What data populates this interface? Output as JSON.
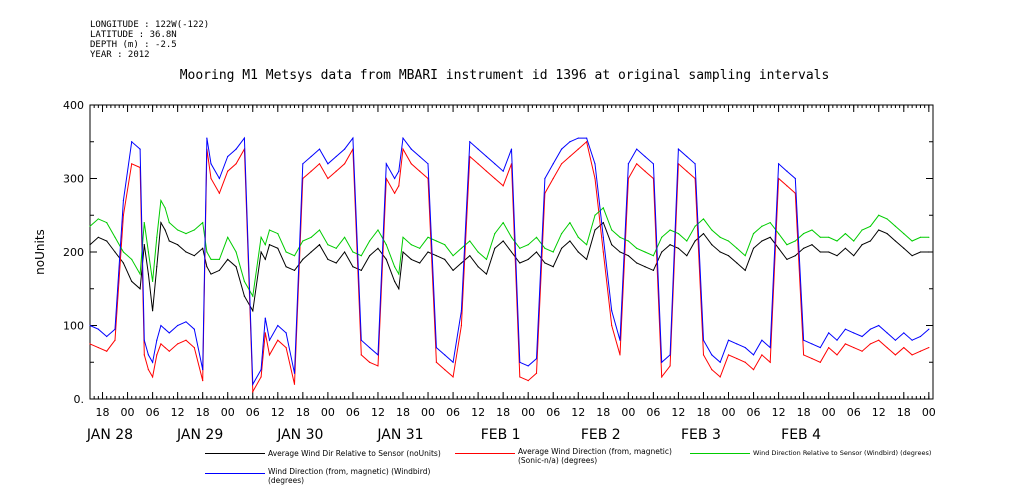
{
  "meta": {
    "longitude": "LONGITUDE : 122W(-122)",
    "latitude": "LATITUDE : 36.8N",
    "depth": "DEPTH (m) : -2.5",
    "year": "YEAR : 2012"
  },
  "chart_data": {
    "type": "line",
    "title": "Mooring M1 Metsys data from MBARI instrument id 1396 at original sampling intervals",
    "ylabel": "noUnits",
    "xlabel": "",
    "ylim": [
      0,
      400
    ],
    "xlim": [
      15,
      217
    ],
    "grid": false,
    "y_ticks": [
      "0.",
      "100",
      "200",
      "300",
      "400"
    ],
    "hour_ticks": [
      {
        "x": 18,
        "label": "18"
      },
      {
        "x": 24,
        "label": "00"
      },
      {
        "x": 30,
        "label": "06"
      },
      {
        "x": 36,
        "label": "12"
      },
      {
        "x": 42,
        "label": "18"
      },
      {
        "x": 48,
        "label": "00"
      },
      {
        "x": 54,
        "label": "06"
      },
      {
        "x": 60,
        "label": "12"
      },
      {
        "x": 66,
        "label": "18"
      },
      {
        "x": 72,
        "label": "00"
      },
      {
        "x": 78,
        "label": "06"
      },
      {
        "x": 84,
        "label": "12"
      },
      {
        "x": 90,
        "label": "18"
      },
      {
        "x": 96,
        "label": "00"
      },
      {
        "x": 102,
        "label": "06"
      },
      {
        "x": 108,
        "label": "12"
      },
      {
        "x": 114,
        "label": "18"
      },
      {
        "x": 120,
        "label": "00"
      },
      {
        "x": 126,
        "label": "06"
      },
      {
        "x": 132,
        "label": "12"
      },
      {
        "x": 138,
        "label": "18"
      },
      {
        "x": 144,
        "label": "00"
      },
      {
        "x": 150,
        "label": "06"
      },
      {
        "x": 156,
        "label": "12"
      },
      {
        "x": 162,
        "label": "18"
      },
      {
        "x": 168,
        "label": "00"
      },
      {
        "x": 174,
        "label": "06"
      },
      {
        "x": 180,
        "label": "12"
      },
      {
        "x": 186,
        "label": "18"
      },
      {
        "x": 192,
        "label": "00"
      },
      {
        "x": 198,
        "label": "06"
      },
      {
        "x": 204,
        "label": "12"
      },
      {
        "x": 210,
        "label": "18"
      },
      {
        "x": 216,
        "label": "00"
      }
    ],
    "date_labels": [
      {
        "x": 15,
        "label": "JAN 28"
      },
      {
        "x": 39,
        "label": "JAN 29"
      },
      {
        "x": 63,
        "label": "JAN 30"
      },
      {
        "x": 87,
        "label": "JAN 31"
      },
      {
        "x": 111,
        "label": "FEB  1"
      },
      {
        "x": 135,
        "label": "FEB  2"
      },
      {
        "x": 159,
        "label": "FEB  3"
      },
      {
        "x": 183,
        "label": "FEB  4"
      }
    ],
    "series": [
      {
        "name": "Average Wind Dir Relative to Sensor (noUnits)",
        "color": "#000000",
        "x": [
          15,
          17,
          19,
          21,
          23,
          25,
          27,
          28,
          29,
          30,
          31,
          32,
          33,
          34,
          36,
          38,
          40,
          42,
          43,
          44,
          46,
          48,
          50,
          52,
          54,
          56,
          57,
          58,
          60,
          62,
          64,
          66,
          68,
          70,
          72,
          74,
          76,
          78,
          80,
          82,
          84,
          86,
          88,
          89,
          90,
          92,
          94,
          96,
          98,
          100,
          102,
          104,
          106,
          108,
          110,
          112,
          114,
          116,
          118,
          120,
          122,
          124,
          126,
          128,
          130,
          132,
          134,
          136,
          138,
          140,
          142,
          144,
          146,
          148,
          150,
          152,
          154,
          156,
          158,
          160,
          162,
          164,
          166,
          168,
          170,
          172,
          174,
          176,
          178,
          180,
          182,
          184,
          186,
          188,
          190,
          192,
          194,
          196,
          198,
          200,
          202,
          204,
          206,
          208,
          210,
          212,
          214,
          216
        ],
        "y": [
          210,
          220,
          215,
          200,
          185,
          160,
          150,
          210,
          170,
          120,
          180,
          240,
          230,
          215,
          210,
          200,
          195,
          205,
          180,
          170,
          175,
          190,
          180,
          140,
          120,
          200,
          190,
          210,
          205,
          180,
          175,
          190,
          200,
          210,
          190,
          185,
          200,
          180,
          175,
          195,
          205,
          190,
          160,
          150,
          200,
          190,
          185,
          200,
          195,
          190,
          175,
          185,
          195,
          180,
          170,
          205,
          215,
          200,
          185,
          190,
          200,
          185,
          180,
          205,
          215,
          200,
          190,
          230,
          240,
          210,
          200,
          195,
          185,
          180,
          175,
          200,
          210,
          205,
          195,
          215,
          225,
          210,
          200,
          195,
          185,
          175,
          205,
          215,
          220,
          205,
          190,
          195,
          205,
          210,
          200,
          200,
          195,
          205,
          195,
          210,
          215,
          230,
          225,
          215,
          205,
          195,
          200,
          200
        ]
      },
      {
        "name": "Average Wind Direction (from, magnetic) (Sonic-n/a) (degrees)",
        "color": "#ff0000",
        "x": [
          15,
          17,
          19,
          21,
          23,
          25,
          27,
          28,
          29,
          30,
          31,
          32,
          33,
          34,
          36,
          38,
          40,
          42,
          43,
          44,
          46,
          48,
          50,
          52,
          54,
          56,
          57,
          58,
          60,
          62,
          64,
          66,
          68,
          70,
          72,
          74,
          76,
          78,
          80,
          82,
          84,
          86,
          88,
          89,
          90,
          92,
          94,
          96,
          98,
          100,
          102,
          104,
          106,
          108,
          110,
          112,
          114,
          116,
          118,
          120,
          122,
          124,
          126,
          128,
          130,
          132,
          134,
          136,
          138,
          140,
          142,
          144,
          146,
          148,
          150,
          152,
          154,
          156,
          158,
          160,
          162,
          164,
          166,
          168,
          170,
          172,
          174,
          176,
          178,
          180,
          182,
          184,
          186,
          188,
          190,
          192,
          194,
          196,
          198,
          200,
          202,
          204,
          206,
          208,
          210,
          212,
          214,
          216
        ],
        "y": [
          75,
          70,
          65,
          80,
          250,
          320,
          315,
          60,
          40,
          30,
          60,
          75,
          70,
          65,
          75,
          80,
          70,
          25,
          340,
          300,
          280,
          310,
          320,
          340,
          10,
          30,
          90,
          60,
          80,
          70,
          20,
          300,
          310,
          320,
          300,
          310,
          320,
          340,
          60,
          50,
          45,
          300,
          280,
          290,
          340,
          320,
          310,
          300,
          50,
          40,
          30,
          100,
          330,
          320,
          310,
          300,
          290,
          320,
          30,
          25,
          35,
          280,
          300,
          320,
          330,
          340,
          350,
          300,
          200,
          100,
          60,
          300,
          320,
          310,
          300,
          30,
          45,
          320,
          310,
          300,
          60,
          40,
          30,
          60,
          55,
          50,
          40,
          60,
          50,
          300,
          290,
          280,
          60,
          55,
          50,
          70,
          60,
          75,
          70,
          65,
          75,
          80,
          70,
          60,
          70,
          60,
          65,
          70
        ]
      },
      {
        "name": "Wind Direction Relative to Sensor (Windbird) (degrees)",
        "color": "#00cc00",
        "x": [
          15,
          17,
          19,
          21,
          23,
          25,
          27,
          28,
          29,
          30,
          31,
          32,
          33,
          34,
          36,
          38,
          40,
          42,
          43,
          44,
          46,
          48,
          50,
          52,
          54,
          56,
          57,
          58,
          60,
          62,
          64,
          66,
          68,
          70,
          72,
          74,
          76,
          78,
          80,
          82,
          84,
          86,
          88,
          89,
          90,
          92,
          94,
          96,
          98,
          100,
          102,
          104,
          106,
          108,
          110,
          112,
          114,
          116,
          118,
          120,
          122,
          124,
          126,
          128,
          130,
          132,
          134,
          136,
          138,
          140,
          142,
          144,
          146,
          148,
          150,
          152,
          154,
          156,
          158,
          160,
          162,
          164,
          166,
          168,
          170,
          172,
          174,
          176,
          178,
          180,
          182,
          184,
          186,
          188,
          190,
          192,
          194,
          196,
          198,
          200,
          202,
          204,
          206,
          208,
          210,
          212,
          214,
          216
        ],
        "y": [
          235,
          245,
          240,
          220,
          200,
          190,
          170,
          240,
          200,
          160,
          220,
          270,
          260,
          240,
          230,
          225,
          230,
          240,
          200,
          190,
          190,
          220,
          200,
          160,
          140,
          220,
          210,
          230,
          225,
          200,
          195,
          215,
          220,
          230,
          210,
          205,
          220,
          200,
          195,
          215,
          230,
          210,
          180,
          170,
          220,
          210,
          205,
          220,
          215,
          210,
          195,
          205,
          215,
          200,
          190,
          225,
          240,
          220,
          205,
          210,
          220,
          205,
          200,
          225,
          240,
          220,
          210,
          250,
          260,
          230,
          220,
          215,
          205,
          200,
          195,
          220,
          230,
          225,
          215,
          235,
          245,
          230,
          220,
          215,
          205,
          195,
          225,
          235,
          240,
          225,
          210,
          215,
          225,
          230,
          220,
          220,
          215,
          225,
          215,
          230,
          235,
          250,
          245,
          235,
          225,
          215,
          220,
          220
        ]
      },
      {
        "name": "Wind Direction (from, magnetic) (Windbird) (degrees)",
        "color": "#0000ff",
        "x": [
          15,
          17,
          19,
          21,
          23,
          25,
          27,
          28,
          29,
          30,
          31,
          32,
          33,
          34,
          36,
          38,
          40,
          42,
          43,
          44,
          46,
          48,
          50,
          52,
          54,
          56,
          57,
          58,
          60,
          62,
          64,
          66,
          68,
          70,
          72,
          74,
          76,
          78,
          80,
          82,
          84,
          86,
          88,
          89,
          90,
          92,
          94,
          96,
          98,
          100,
          102,
          104,
          106,
          108,
          110,
          112,
          114,
          116,
          118,
          120,
          122,
          124,
          126,
          128,
          130,
          132,
          134,
          136,
          138,
          140,
          142,
          144,
          146,
          148,
          150,
          152,
          154,
          156,
          158,
          160,
          162,
          164,
          166,
          168,
          170,
          172,
          174,
          176,
          178,
          180,
          182,
          184,
          186,
          188,
          190,
          192,
          194,
          196,
          198,
          200,
          202,
          204,
          206,
          208,
          210,
          212,
          214,
          216
        ],
        "y": [
          100,
          95,
          85,
          95,
          270,
          350,
          340,
          80,
          60,
          50,
          80,
          100,
          95,
          90,
          100,
          105,
          95,
          40,
          355,
          320,
          300,
          330,
          340,
          355,
          20,
          40,
          110,
          80,
          100,
          90,
          35,
          320,
          330,
          340,
          320,
          330,
          340,
          355,
          80,
          70,
          60,
          320,
          300,
          310,
          355,
          340,
          330,
          320,
          70,
          60,
          50,
          120,
          350,
          340,
          330,
          320,
          310,
          340,
          50,
          45,
          55,
          300,
          320,
          340,
          350,
          355,
          355,
          320,
          220,
          120,
          80,
          320,
          340,
          330,
          320,
          50,
          60,
          340,
          330,
          320,
          80,
          60,
          50,
          80,
          75,
          70,
          60,
          80,
          70,
          320,
          310,
          300,
          80,
          75,
          70,
          90,
          80,
          95,
          90,
          85,
          95,
          100,
          90,
          80,
          90,
          80,
          85,
          95
        ]
      }
    ],
    "legend_placement": "bottom"
  }
}
